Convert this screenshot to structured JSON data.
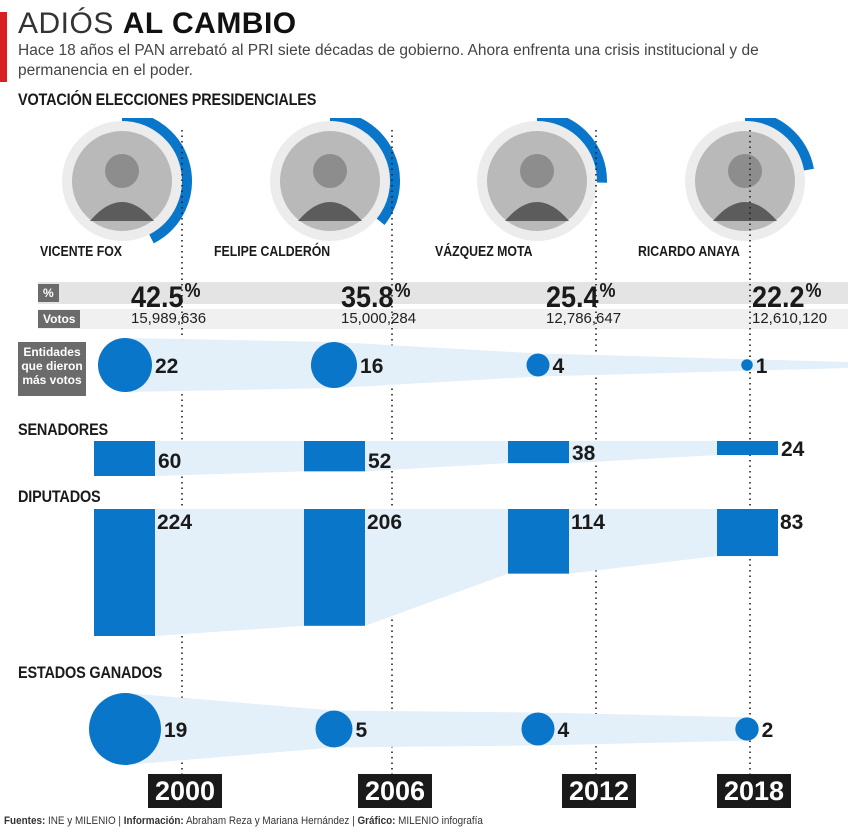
{
  "header": {
    "title_light": "ADIÓS",
    "title_bold": "AL CAMBIO",
    "subtitle": "Hace 18 años el PAN arrebató al PRI siete décadas de gobierno. Ahora enfrenta una crisis institucional y de permanencia en el poder."
  },
  "sections": {
    "presidential": "VOTACIÓN ELECCIONES PRESIDENCIALES",
    "entidades": "Entidades que dieron más votos",
    "senadores": "SENADORES",
    "diputados": "DIPUTADOS",
    "estados": "ESTADOS GANADOS"
  },
  "row_labels": {
    "pct": "%",
    "votos": "Votos"
  },
  "colors": {
    "accent": "#d7201f",
    "blue": "#0a76c9",
    "light_blue": "#e3eff9",
    "dark": "#1a1a1a",
    "label_gray": "#6b6b6b"
  },
  "candidates": [
    {
      "name": "VICENTE FOX",
      "pct": "42.5",
      "pct_sign": "%",
      "votes": "15,989,636"
    },
    {
      "name": "FELIPE CALDERÓN",
      "pct": "35.8",
      "pct_sign": "%",
      "votes": "15,000,284"
    },
    {
      "name": "VÁZQUEZ MOTA",
      "pct": "25.4",
      "pct_sign": "%",
      "votes": "12,786,647"
    },
    {
      "name": "RICARDO ANAYA",
      "pct": "22.2",
      "pct_sign": "%",
      "votes": "12,610,120"
    }
  ],
  "years": [
    "2000",
    "2006",
    "2012",
    "2018"
  ],
  "chart_data": [
    {
      "type": "bar",
      "title": "VOTACIÓN ELECCIONES PRESIDENCIALES",
      "categories": [
        "2000",
        "2006",
        "2012",
        "2018"
      ],
      "series": [
        {
          "name": "%",
          "values": [
            42.5,
            35.8,
            25.4,
            22.2
          ]
        },
        {
          "name": "Votos",
          "values": [
            15989636,
            15000284,
            12786647,
            12610120
          ]
        }
      ]
    },
    {
      "type": "scatter",
      "title": "Entidades que dieron más votos",
      "categories": [
        "2000",
        "2006",
        "2012",
        "2018"
      ],
      "values": [
        22,
        16,
        4,
        1
      ]
    },
    {
      "type": "bar",
      "title": "SENADORES",
      "categories": [
        "2000",
        "2006",
        "2012",
        "2018"
      ],
      "values": [
        60,
        52,
        38,
        24
      ]
    },
    {
      "type": "bar",
      "title": "DIPUTADOS",
      "categories": [
        "2000",
        "2006",
        "2012",
        "2018"
      ],
      "values": [
        224,
        206,
        114,
        83
      ]
    },
    {
      "type": "scatter",
      "title": "ESTADOS GANADOS",
      "categories": [
        "2000",
        "2006",
        "2012",
        "2018"
      ],
      "values": [
        19,
        5,
        4,
        2
      ]
    }
  ],
  "footer": {
    "fuentes_label": "Fuentes:",
    "fuentes": "INE y MILENIO",
    "info_label": "Información:",
    "info": "Abraham Reza y Mariana Hernández",
    "grafico_label": "Gráfico:",
    "grafico": "MILENIO infografía"
  }
}
